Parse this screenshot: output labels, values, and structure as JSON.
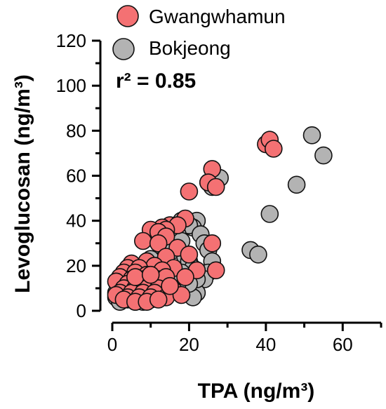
{
  "chart_data": {
    "type": "scatter",
    "xlabel": "TPA (ng/m³)",
    "ylabel": "Levoglucosan (ng/m³)",
    "annotation": "r² = 0.85",
    "xlim": [
      0,
      70
    ],
    "ylim": [
      0,
      120
    ],
    "xticks": [
      0,
      20,
      40,
      60
    ],
    "yticks": [
      0,
      20,
      40,
      60,
      80,
      100,
      120
    ],
    "xtick_labels": [
      "0",
      "20",
      "40",
      "60"
    ],
    "ytick_labels": [
      "0",
      "20",
      "40",
      "60",
      "80",
      "100",
      "120"
    ],
    "legend_position": "top-left",
    "series": [
      {
        "name": "Bokjeong",
        "color": "#b3b3b3",
        "points": [
          [
            52,
            78
          ],
          [
            55,
            69
          ],
          [
            48,
            56
          ],
          [
            41,
            43
          ],
          [
            36,
            27
          ],
          [
            38,
            25
          ],
          [
            25,
            57
          ],
          [
            27,
            58
          ],
          [
            28,
            59
          ],
          [
            26,
            55
          ],
          [
            22,
            40
          ],
          [
            21,
            37
          ],
          [
            18,
            40
          ],
          [
            20,
            38
          ],
          [
            23,
            34
          ],
          [
            24,
            30
          ],
          [
            25,
            27
          ],
          [
            26,
            22
          ],
          [
            25,
            17
          ],
          [
            24,
            14
          ],
          [
            22,
            8
          ],
          [
            21,
            6
          ],
          [
            15,
            30
          ],
          [
            17,
            34
          ],
          [
            18,
            31
          ],
          [
            16,
            27
          ],
          [
            19,
            24
          ],
          [
            20,
            22
          ],
          [
            21,
            19
          ],
          [
            18,
            17
          ],
          [
            22,
            14
          ],
          [
            20,
            12
          ],
          [
            12,
            22
          ],
          [
            14,
            21
          ],
          [
            15,
            18
          ],
          [
            13,
            16
          ],
          [
            16,
            14
          ],
          [
            17,
            12
          ],
          [
            14,
            11
          ],
          [
            11,
            10
          ],
          [
            12,
            14
          ],
          [
            9,
            18
          ],
          [
            8,
            20
          ],
          [
            10,
            23
          ],
          [
            7,
            16
          ],
          [
            6,
            12
          ],
          [
            8,
            8
          ],
          [
            9,
            6
          ],
          [
            11,
            7
          ],
          [
            7,
            6
          ],
          [
            10,
            5
          ],
          [
            5,
            14
          ],
          [
            4,
            10
          ],
          [
            6,
            8
          ],
          [
            3,
            6
          ],
          [
            2,
            9
          ],
          [
            4,
            5
          ],
          [
            1,
            6
          ],
          [
            2,
            4
          ],
          [
            1,
            8
          ],
          [
            3,
            12
          ],
          [
            5,
            5
          ],
          [
            6,
            4
          ],
          [
            8,
            4
          ],
          [
            13,
            7
          ],
          [
            15,
            9
          ]
        ]
      },
      {
        "name": "Gwangwhamun",
        "color": "#f47173",
        "points": [
          [
            40,
            74
          ],
          [
            41,
            76
          ],
          [
            42,
            72
          ],
          [
            26,
            63
          ],
          [
            25,
            57
          ],
          [
            27,
            55
          ],
          [
            20,
            53
          ],
          [
            19,
            41
          ],
          [
            15,
            38
          ],
          [
            17,
            38
          ],
          [
            13,
            37
          ],
          [
            10,
            36
          ],
          [
            14,
            36
          ],
          [
            12,
            35
          ],
          [
            8,
            31
          ],
          [
            14,
            33
          ],
          [
            12,
            30
          ],
          [
            26,
            30
          ],
          [
            17,
            28
          ],
          [
            20,
            25
          ],
          [
            14,
            24
          ],
          [
            9,
            22
          ],
          [
            5,
            21
          ],
          [
            11,
            20
          ],
          [
            4,
            19
          ],
          [
            7,
            19
          ],
          [
            16,
            19
          ],
          [
            13,
            18
          ],
          [
            22,
            18
          ],
          [
            27,
            18
          ],
          [
            3,
            17
          ],
          [
            6,
            17
          ],
          [
            9,
            16
          ],
          [
            2,
            15
          ],
          [
            5,
            14
          ],
          [
            8,
            14
          ],
          [
            12,
            14
          ],
          [
            14,
            15
          ],
          [
            19,
            15
          ],
          [
            1,
            13
          ],
          [
            4,
            12
          ],
          [
            7,
            12
          ],
          [
            10,
            12
          ],
          [
            3,
            10
          ],
          [
            6,
            10
          ],
          [
            9,
            10
          ],
          [
            12,
            10
          ],
          [
            16,
            9
          ],
          [
            2,
            8
          ],
          [
            5,
            8
          ],
          [
            8,
            8
          ],
          [
            11,
            8
          ],
          [
            1,
            7
          ],
          [
            4,
            6
          ],
          [
            7,
            6
          ],
          [
            10,
            6
          ],
          [
            14,
            6
          ],
          [
            3,
            5
          ],
          [
            6,
            4
          ],
          [
            9,
            4
          ],
          [
            12,
            5
          ],
          [
            18,
            7
          ],
          [
            15,
            11
          ],
          [
            6,
            15
          ],
          [
            10,
            16
          ]
        ]
      }
    ]
  }
}
